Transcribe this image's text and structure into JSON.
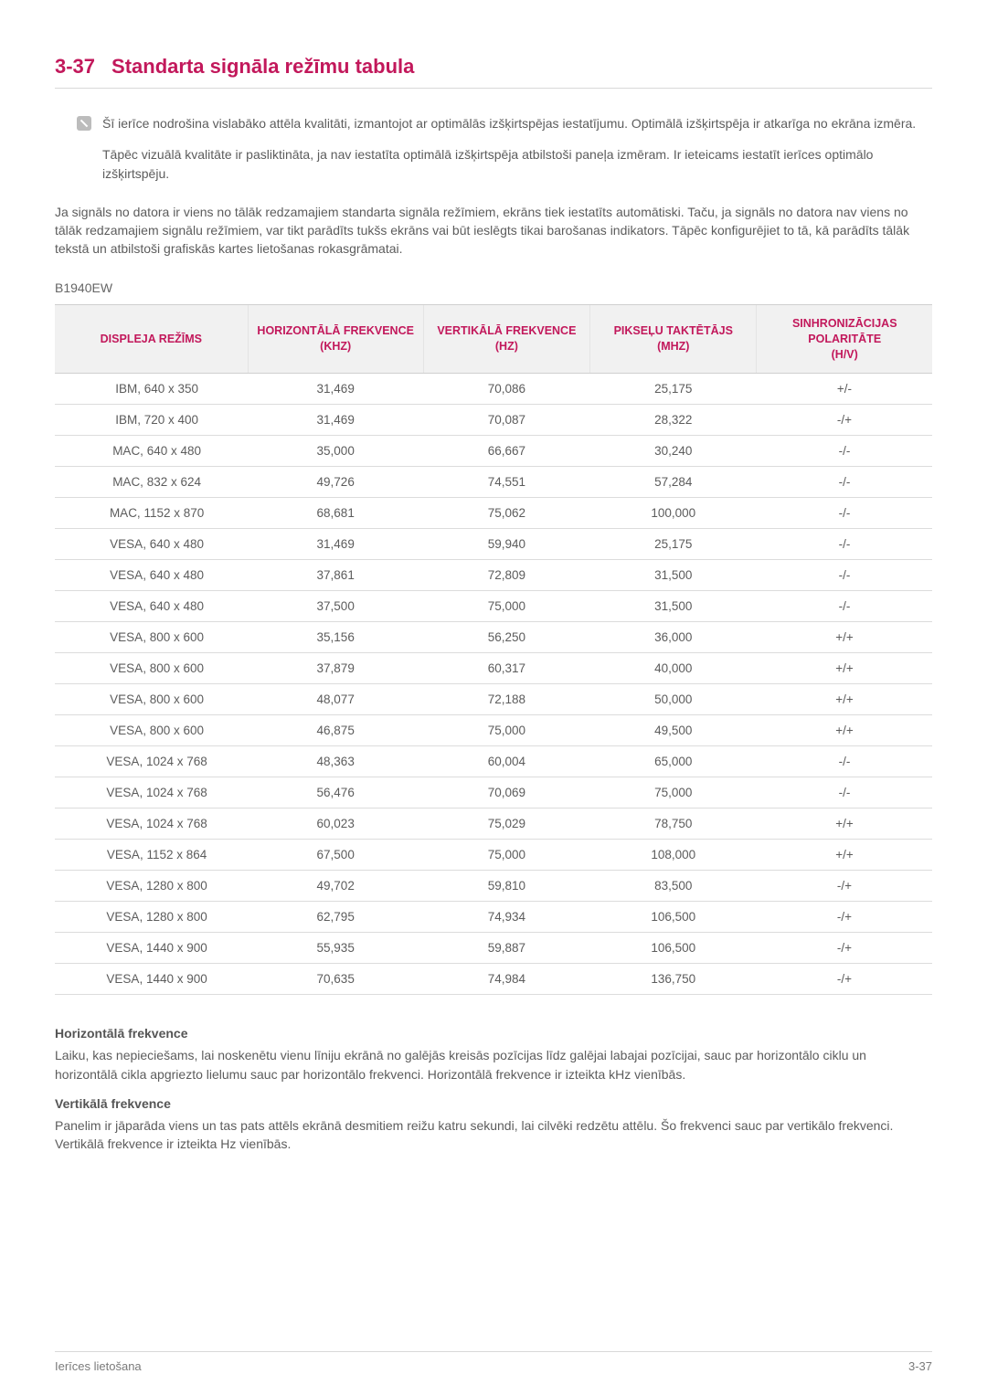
{
  "heading": {
    "number": "3-37",
    "title": "Standarta signāla režīmu tabula"
  },
  "note": {
    "line1": "Šī ierīce nodrošina vislabāko attēla kvalitāti, izmantojot ar optimālās izšķirtspējas iestatījumu. Optimālā izšķirtspēja ir atkarīga no ekrāna izmēra.",
    "line2": "Tāpēc vizuālā kvalitāte ir pasliktināta, ja nav iestatīta optimālā izšķirtspēja atbilstoši paneļa izmēram. Ir ieteicams iestatīt ierīces optimālo izšķirtspēju."
  },
  "body_para": "Ja signāls no datora ir viens no tālāk redzamajiem standarta signāla režīmiem, ekrāns tiek iestatīts automātiski. Taču, ja signāls no datora nav viens no tālāk redzamajiem signālu režīmiem, var tikt parādīts tukšs ekrāns vai būt ieslēgts tikai barošanas indikators. Tāpēc konfigurējiet to tā, kā parādīts tālāk tekstā un atbilstoši grafiskās kartes lietošanas rokasgrāmatai.",
  "model": "B1940EW",
  "table": {
    "columns": [
      "DISPLEJA REŽĪMS",
      "HORIZONTĀLĀ FREKVENCE (KHZ)",
      "VERTIKĀLĀ FREKVENCE (HZ)",
      "PIKSEĻU TAKTĒTĀJS (MHZ)",
      "SINHRONIZĀCIJAS POLARITĀTE (H/V)"
    ],
    "col_widths": [
      "22%",
      "20%",
      "19%",
      "19%",
      "20%"
    ],
    "header_color": "#c2185b",
    "header_bg": "#f1f1f1",
    "border_color": "#dcdcdc",
    "rows": [
      [
        "IBM, 640 x 350",
        "31,469",
        "70,086",
        "25,175",
        "+/-"
      ],
      [
        "IBM, 720 x 400",
        "31,469",
        "70,087",
        "28,322",
        "-/+"
      ],
      [
        "MAC, 640 x 480",
        "35,000",
        "66,667",
        "30,240",
        "-/-"
      ],
      [
        "MAC, 832 x 624",
        "49,726",
        "74,551",
        "57,284",
        "-/-"
      ],
      [
        "MAC, 1152 x 870",
        "68,681",
        "75,062",
        "100,000",
        "-/-"
      ],
      [
        "VESA, 640 x 480",
        "31,469",
        "59,940",
        "25,175",
        "-/-"
      ],
      [
        "VESA, 640 x 480",
        "37,861",
        "72,809",
        "31,500",
        "-/-"
      ],
      [
        "VESA, 640 x 480",
        "37,500",
        "75,000",
        "31,500",
        "-/-"
      ],
      [
        "VESA, 800 x 600",
        "35,156",
        "56,250",
        "36,000",
        "+/+"
      ],
      [
        "VESA, 800 x 600",
        "37,879",
        "60,317",
        "40,000",
        "+/+"
      ],
      [
        "VESA, 800 x 600",
        "48,077",
        "72,188",
        "50,000",
        "+/+"
      ],
      [
        "VESA, 800 x 600",
        "46,875",
        "75,000",
        "49,500",
        "+/+"
      ],
      [
        "VESA, 1024 x 768",
        "48,363",
        "60,004",
        "65,000",
        "-/-"
      ],
      [
        "VESA, 1024 x 768",
        "56,476",
        "70,069",
        "75,000",
        "-/-"
      ],
      [
        "VESA, 1024 x 768",
        "60,023",
        "75,029",
        "78,750",
        "+/+"
      ],
      [
        "VESA, 1152 x 864",
        "67,500",
        "75,000",
        "108,000",
        "+/+"
      ],
      [
        "VESA, 1280 x 800",
        "49,702",
        "59,810",
        "83,500",
        "-/+"
      ],
      [
        "VESA, 1280 x 800",
        "62,795",
        "74,934",
        "106,500",
        "-/+"
      ],
      [
        "VESA, 1440 x 900",
        "55,935",
        "59,887",
        "106,500",
        "-/+"
      ],
      [
        "VESA, 1440 x 900",
        "70,635",
        "74,984",
        "136,750",
        "-/+"
      ]
    ]
  },
  "sections": {
    "h_freq": {
      "title": "Horizontālā frekvence",
      "text": "Laiku, kas nepieciešams, lai noskenētu vienu līniju ekrānā no galējās kreisās pozīcijas līdz galējai labajai pozīcijai, sauc par horizontālo ciklu un horizontālā cikla apgriezto lielumu sauc par horizontālo frekvenci. Horizontālā frekvence ir izteikta kHz vienībās."
    },
    "v_freq": {
      "title": "Vertikālā frekvence",
      "text": "Panelim ir jāparāda viens un tas pats attēls ekrānā desmitiem reižu katru sekundi, lai cilvēki redzētu attēlu. Šo frekvenci sauc par vertikālo frekvenci. Vertikālā frekvence ir izteikta Hz vienībās."
    }
  },
  "footer": {
    "left": "Ierīces lietošana",
    "right": "3-37"
  },
  "colors": {
    "accent": "#c2185b",
    "text": "#5c5c5c",
    "divider": "#d9d9d9",
    "page_bg": "#ffffff"
  }
}
